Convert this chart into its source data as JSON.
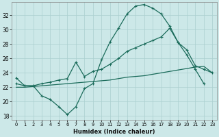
{
  "xlabel": "Humidex (Indice chaleur)",
  "background_color": "#cce8e8",
  "grid_color": "#aacfcf",
  "line_color": "#1a6b5a",
  "xlim": [
    -0.5,
    23.5
  ],
  "ylim": [
    17.5,
    33.8
  ],
  "xticks": [
    0,
    1,
    2,
    3,
    4,
    5,
    6,
    7,
    8,
    9,
    10,
    11,
    12,
    13,
    14,
    15,
    16,
    17,
    18,
    19,
    20,
    21,
    22,
    23
  ],
  "yticks": [
    18,
    20,
    22,
    24,
    26,
    28,
    30,
    32
  ],
  "line1_x": [
    0,
    1,
    2,
    3,
    4,
    5,
    6,
    7,
    8,
    9,
    10,
    11,
    12,
    13,
    14,
    15,
    16,
    17,
    18,
    19,
    20,
    21,
    22,
    23
  ],
  "line1_y": [
    23.3,
    22.2,
    22.2,
    20.8,
    20.3,
    19.3,
    18.2,
    19.3,
    21.8,
    22.5,
    25.8,
    28.3,
    30.2,
    32.2,
    33.3,
    33.5,
    33.0,
    32.2,
    30.5,
    28.2,
    27.2,
    25.0,
    24.5,
    24.0
  ],
  "line2_x": [
    0,
    1,
    2,
    3,
    4,
    5,
    6,
    7,
    8,
    9,
    10,
    11,
    12,
    13,
    14,
    15,
    16,
    17,
    18,
    19,
    20,
    21,
    22,
    23
  ],
  "line2_y": [
    22.0,
    22.0,
    22.1,
    22.2,
    22.3,
    22.4,
    22.5,
    22.6,
    22.7,
    22.8,
    22.9,
    23.0,
    23.2,
    23.4,
    23.5,
    23.6,
    23.8,
    24.0,
    24.2,
    24.4,
    24.6,
    24.8,
    24.9,
    24.0
  ],
  "line3_x": [
    0,
    1,
    2,
    3,
    4,
    5,
    6,
    7,
    8,
    9,
    10,
    11,
    12,
    13,
    14,
    15,
    16,
    17,
    18,
    19,
    20,
    21,
    22,
    23
  ],
  "line3_y": [
    22.5,
    22.2,
    22.2,
    22.5,
    22.7,
    23.0,
    23.2,
    25.5,
    23.5,
    24.2,
    24.5,
    25.2,
    26.0,
    27.0,
    27.5,
    28.0,
    28.5,
    29.0,
    30.2,
    28.2,
    26.5,
    24.5,
    22.5,
    null
  ]
}
